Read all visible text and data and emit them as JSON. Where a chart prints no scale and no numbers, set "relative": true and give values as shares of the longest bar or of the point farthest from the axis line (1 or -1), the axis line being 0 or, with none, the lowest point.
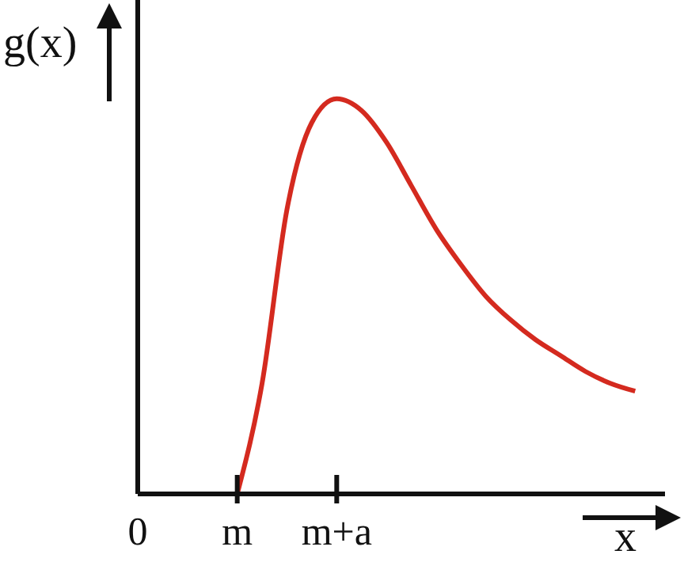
{
  "chart_data": {
    "type": "line",
    "relative": true,
    "xlabel": "x",
    "ylabel": "g(x)",
    "categories": [
      "0",
      null,
      null,
      null,
      "m",
      null,
      null,
      null,
      "m+a",
      null,
      null,
      null,
      null,
      null,
      null,
      null,
      null,
      null,
      null,
      null,
      null,
      null
    ],
    "marker": "none",
    "line_style": "solid",
    "grid": false,
    "legend": false,
    "series": [
      {
        "color": "#d42a1f",
        "values": [
          null,
          null,
          null,
          null,
          0,
          0.28,
          0.72,
          0.94,
          1.0,
          0.97,
          0.89,
          0.78,
          0.67,
          0.58,
          0.5,
          0.44,
          0.39,
          0.35,
          0.31,
          0.28,
          0.26,
          null
        ]
      }
    ]
  }
}
